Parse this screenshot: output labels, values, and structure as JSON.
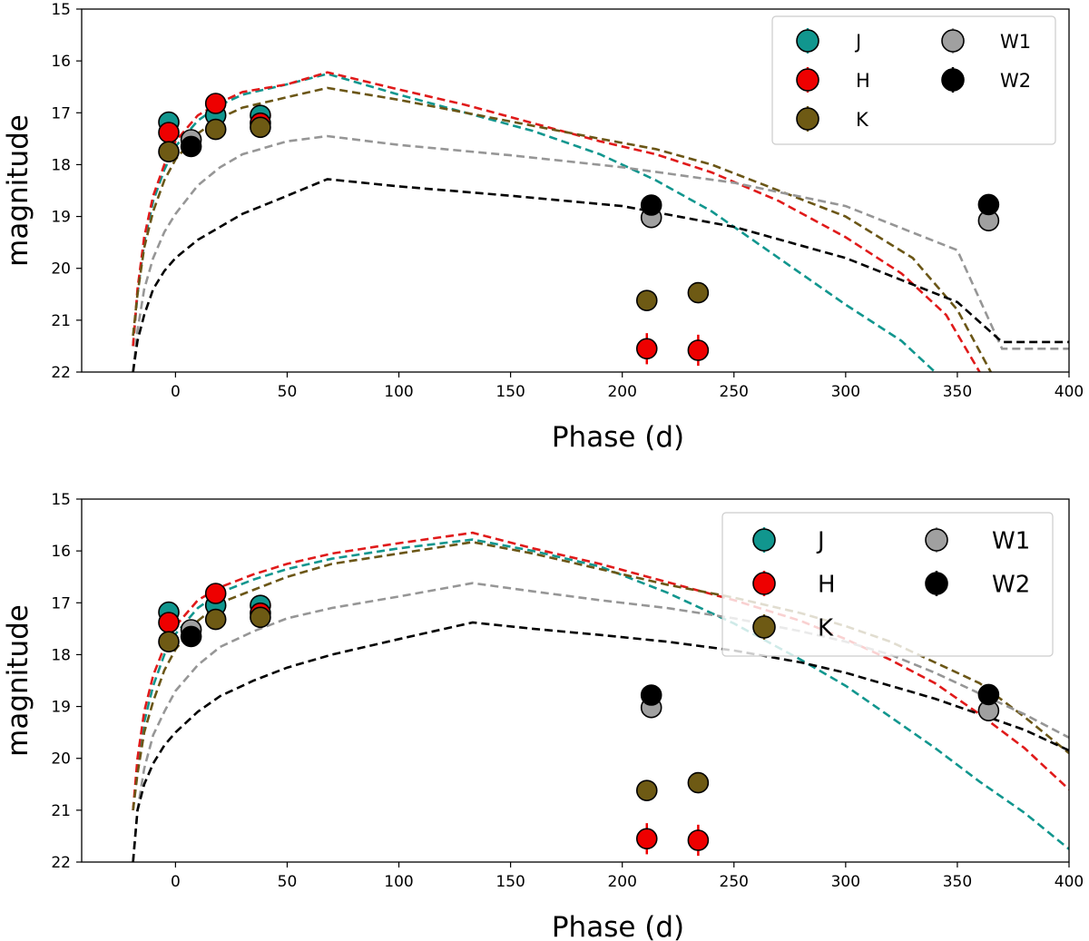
{
  "colors": {
    "J": "#11968e",
    "H": "#ee0000",
    "K": "#6e5a14",
    "W1": "#a0a0a0",
    "W2": "#000000",
    "J_line": "#11968e",
    "H_line": "#e01a1a",
    "K_line": "#6b5616",
    "W1_line": "#969696",
    "W2_line": "#000000"
  },
  "chart_data": [
    {
      "type": "line",
      "xlabel": "Phase (d)",
      "ylabel": "magnitude",
      "xlim": [
        -42,
        400
      ],
      "ylim": [
        22,
        15
      ],
      "y_inverted": true,
      "xticks": [
        0,
        50,
        100,
        150,
        200,
        250,
        300,
        350,
        400
      ],
      "yticks": [
        15,
        16,
        17,
        18,
        19,
        20,
        21,
        22
      ],
      "xtick_labels": [
        "0",
        "50",
        "100",
        "150",
        "200",
        "250",
        "300",
        "350",
        "400"
      ],
      "ytick_labels": [
        "15",
        "16",
        "17",
        "18",
        "19",
        "20",
        "21",
        "22"
      ],
      "grid": false,
      "legend_position": "top-right",
      "legend": [
        "J",
        "H",
        "K",
        "W1",
        "W2"
      ],
      "points": [
        {
          "band": "J",
          "x": -3,
          "y": 17.18,
          "err": 0.2
        },
        {
          "band": "J",
          "x": 18,
          "y": 17.05,
          "err": 0.15
        },
        {
          "band": "J",
          "x": 38,
          "y": 17.05,
          "err": 0.1
        },
        {
          "band": "H",
          "x": -3,
          "y": 17.38,
          "err": 0.15
        },
        {
          "band": "H",
          "x": 18,
          "y": 16.82,
          "err": 0.12
        },
        {
          "band": "H",
          "x": 38,
          "y": 17.2,
          "err": 0.1
        },
        {
          "band": "H",
          "x": 211,
          "y": 21.55,
          "err": 0.3
        },
        {
          "band": "H",
          "x": 234,
          "y": 21.58,
          "err": 0.3
        },
        {
          "band": "K",
          "x": -3,
          "y": 17.75,
          "err": 0.1
        },
        {
          "band": "K",
          "x": 18,
          "y": 17.32,
          "err": 0.1
        },
        {
          "band": "K",
          "x": 38,
          "y": 17.28,
          "err": 0.1
        },
        {
          "band": "K",
          "x": 211,
          "y": 20.62,
          "err": 0.1
        },
        {
          "band": "K",
          "x": 234,
          "y": 20.47,
          "err": 0.1
        },
        {
          "band": "W1",
          "x": 7,
          "y": 17.52,
          "err": 0.1
        },
        {
          "band": "W1",
          "x": 213,
          "y": 19.02,
          "err": 0.1
        },
        {
          "band": "W1",
          "x": 364,
          "y": 19.08,
          "err": 0.1
        },
        {
          "band": "W2",
          "x": 7,
          "y": 17.65,
          "err": 0.1
        },
        {
          "band": "W2",
          "x": 213,
          "y": 18.78,
          "err": 0.15
        },
        {
          "band": "W2",
          "x": 364,
          "y": 18.77,
          "err": 0.2
        }
      ],
      "models": [
        {
          "band": "J",
          "x": [
            -19,
            -17,
            -14,
            -10,
            -5,
            0,
            10,
            20,
            30,
            50,
            68,
            100,
            130,
            160,
            190,
            215,
            240,
            270,
            300,
            325,
            340
          ],
          "y": [
            21.5,
            20.5,
            19.5,
            18.7,
            18.1,
            17.65,
            17.15,
            16.85,
            16.65,
            16.45,
            16.25,
            16.65,
            17.0,
            17.35,
            17.8,
            18.3,
            18.9,
            19.8,
            20.7,
            21.4,
            22.0
          ]
        },
        {
          "band": "H",
          "x": [
            -19,
            -17,
            -14,
            -10,
            -5,
            0,
            10,
            20,
            30,
            50,
            68,
            100,
            130,
            160,
            190,
            215,
            240,
            270,
            300,
            325,
            345,
            360
          ],
          "y": [
            21.5,
            20.4,
            19.4,
            18.6,
            18.0,
            17.55,
            17.05,
            16.8,
            16.6,
            16.45,
            16.22,
            16.55,
            16.85,
            17.2,
            17.55,
            17.8,
            18.15,
            18.7,
            19.4,
            20.1,
            20.9,
            22.0
          ]
        },
        {
          "band": "K",
          "x": [
            -19,
            -17,
            -14,
            -10,
            -5,
            0,
            10,
            20,
            30,
            50,
            68,
            100,
            130,
            160,
            190,
            215,
            240,
            270,
            300,
            330,
            350,
            365
          ],
          "y": [
            21.3,
            20.5,
            19.6,
            18.9,
            18.3,
            17.9,
            17.4,
            17.1,
            16.9,
            16.7,
            16.52,
            16.75,
            17.0,
            17.25,
            17.5,
            17.7,
            18.0,
            18.5,
            19.0,
            19.8,
            20.8,
            22.0
          ]
        },
        {
          "band": "W1",
          "x": [
            -19,
            -17,
            -14,
            -10,
            -5,
            0,
            10,
            20,
            30,
            50,
            68,
            100,
            150,
            200,
            250,
            300,
            350,
            370,
            400
          ],
          "y": [
            22.0,
            21.2,
            20.4,
            19.8,
            19.3,
            18.95,
            18.4,
            18.05,
            17.8,
            17.55,
            17.45,
            17.62,
            17.82,
            18.05,
            18.35,
            18.8,
            19.65,
            21.55,
            21.55
          ]
        },
        {
          "band": "W2",
          "x": [
            -19,
            -17,
            -14,
            -10,
            -5,
            0,
            10,
            20,
            30,
            50,
            68,
            100,
            150,
            200,
            250,
            300,
            350,
            370,
            400
          ],
          "y": [
            22.0,
            21.4,
            20.9,
            20.4,
            20.05,
            19.8,
            19.45,
            19.2,
            18.95,
            18.6,
            18.28,
            18.42,
            18.6,
            18.8,
            19.2,
            19.8,
            20.65,
            21.42,
            21.42
          ]
        }
      ]
    },
    {
      "type": "line",
      "xlabel": "Phase (d)",
      "ylabel": "magnitude",
      "xlim": [
        -42,
        400
      ],
      "ylim": [
        22,
        15
      ],
      "y_inverted": true,
      "xticks": [
        0,
        50,
        100,
        150,
        200,
        250,
        300,
        350,
        400
      ],
      "yticks": [
        15,
        16,
        17,
        18,
        19,
        20,
        21,
        22
      ],
      "xtick_labels": [
        "0",
        "50",
        "100",
        "150",
        "200",
        "250",
        "300",
        "350",
        "400"
      ],
      "ytick_labels": [
        "15",
        "16",
        "17",
        "18",
        "19",
        "20",
        "21",
        "22"
      ],
      "grid": false,
      "legend_position": "top-right",
      "legend": [
        "J",
        "H",
        "K",
        "W1",
        "W2"
      ],
      "points": [
        {
          "band": "J",
          "x": -3,
          "y": 17.18,
          "err": 0.2
        },
        {
          "band": "J",
          "x": 18,
          "y": 17.05,
          "err": 0.15
        },
        {
          "band": "J",
          "x": 38,
          "y": 17.05,
          "err": 0.1
        },
        {
          "band": "H",
          "x": -3,
          "y": 17.38,
          "err": 0.15
        },
        {
          "band": "H",
          "x": 18,
          "y": 16.82,
          "err": 0.12
        },
        {
          "band": "H",
          "x": 38,
          "y": 17.2,
          "err": 0.1
        },
        {
          "band": "H",
          "x": 211,
          "y": 21.55,
          "err": 0.3
        },
        {
          "band": "H",
          "x": 234,
          "y": 21.58,
          "err": 0.3
        },
        {
          "band": "K",
          "x": -3,
          "y": 17.75,
          "err": 0.1
        },
        {
          "band": "K",
          "x": 18,
          "y": 17.32,
          "err": 0.1
        },
        {
          "band": "K",
          "x": 38,
          "y": 17.28,
          "err": 0.1
        },
        {
          "band": "K",
          "x": 211,
          "y": 20.62,
          "err": 0.1
        },
        {
          "band": "K",
          "x": 234,
          "y": 20.47,
          "err": 0.1
        },
        {
          "band": "W1",
          "x": 7,
          "y": 17.52,
          "err": 0.1
        },
        {
          "band": "W1",
          "x": 213,
          "y": 19.02,
          "err": 0.1
        },
        {
          "band": "W1",
          "x": 364,
          "y": 19.08,
          "err": 0.1
        },
        {
          "band": "W2",
          "x": 7,
          "y": 17.65,
          "err": 0.1
        },
        {
          "band": "W2",
          "x": 213,
          "y": 18.78,
          "err": 0.15
        },
        {
          "band": "W2",
          "x": 364,
          "y": 18.77,
          "err": 0.2
        }
      ],
      "models": [
        {
          "band": "J",
          "x": [
            -19,
            -17,
            -14,
            -10,
            -5,
            0,
            10,
            20,
            35,
            50,
            70,
            100,
            133,
            160,
            190,
            220,
            250,
            280,
            300,
            320,
            340,
            360,
            380,
            400
          ],
          "y": [
            21.0,
            20.2,
            19.3,
            18.6,
            18.0,
            17.6,
            17.1,
            16.8,
            16.55,
            16.35,
            16.15,
            15.95,
            15.78,
            16.0,
            16.3,
            16.8,
            17.4,
            18.1,
            18.6,
            19.2,
            19.8,
            20.45,
            21.05,
            21.75
          ]
        },
        {
          "band": "H",
          "x": [
            -19,
            -17,
            -14,
            -10,
            -5,
            0,
            10,
            20,
            35,
            50,
            70,
            100,
            133,
            160,
            190,
            220,
            250,
            280,
            300,
            320,
            340,
            360,
            380,
            400
          ],
          "y": [
            21.0,
            20.0,
            19.1,
            18.4,
            17.85,
            17.45,
            16.95,
            16.7,
            16.45,
            16.25,
            16.05,
            15.85,
            15.65,
            15.95,
            16.25,
            16.6,
            16.95,
            17.35,
            17.7,
            18.1,
            18.55,
            19.15,
            19.8,
            20.6
          ]
        },
        {
          "band": "K",
          "x": [
            -19,
            -17,
            -14,
            -10,
            -5,
            0,
            10,
            20,
            35,
            50,
            70,
            100,
            133,
            160,
            190,
            220,
            250,
            280,
            300,
            320,
            340,
            360,
            380,
            400
          ],
          "y": [
            21.0,
            20.3,
            19.5,
            18.9,
            18.3,
            17.9,
            17.35,
            17.0,
            16.75,
            16.5,
            16.25,
            16.05,
            15.83,
            16.05,
            16.35,
            16.65,
            16.9,
            17.2,
            17.45,
            17.75,
            18.15,
            18.55,
            19.2,
            19.9
          ]
        },
        {
          "band": "W1",
          "x": [
            -19,
            -17,
            -14,
            -10,
            -5,
            0,
            10,
            20,
            35,
            50,
            70,
            100,
            133,
            160,
            190,
            220,
            250,
            280,
            300,
            320,
            340,
            360,
            380,
            400
          ],
          "y": [
            22.0,
            21.0,
            20.2,
            19.55,
            19.1,
            18.7,
            18.2,
            17.85,
            17.55,
            17.3,
            17.1,
            16.88,
            16.62,
            16.78,
            16.95,
            17.1,
            17.3,
            17.55,
            17.75,
            18.0,
            18.35,
            18.75,
            19.15,
            19.6
          ]
        },
        {
          "band": "W2",
          "x": [
            -19,
            -17,
            -14,
            -10,
            -5,
            0,
            10,
            20,
            35,
            50,
            70,
            100,
            133,
            160,
            190,
            220,
            250,
            280,
            300,
            320,
            340,
            360,
            380,
            400
          ],
          "y": [
            22.0,
            21.0,
            20.5,
            20.1,
            19.75,
            19.5,
            19.1,
            18.8,
            18.5,
            18.25,
            18.0,
            17.7,
            17.38,
            17.5,
            17.62,
            17.75,
            17.92,
            18.15,
            18.35,
            18.6,
            18.85,
            19.15,
            19.45,
            19.85
          ]
        }
      ]
    }
  ]
}
